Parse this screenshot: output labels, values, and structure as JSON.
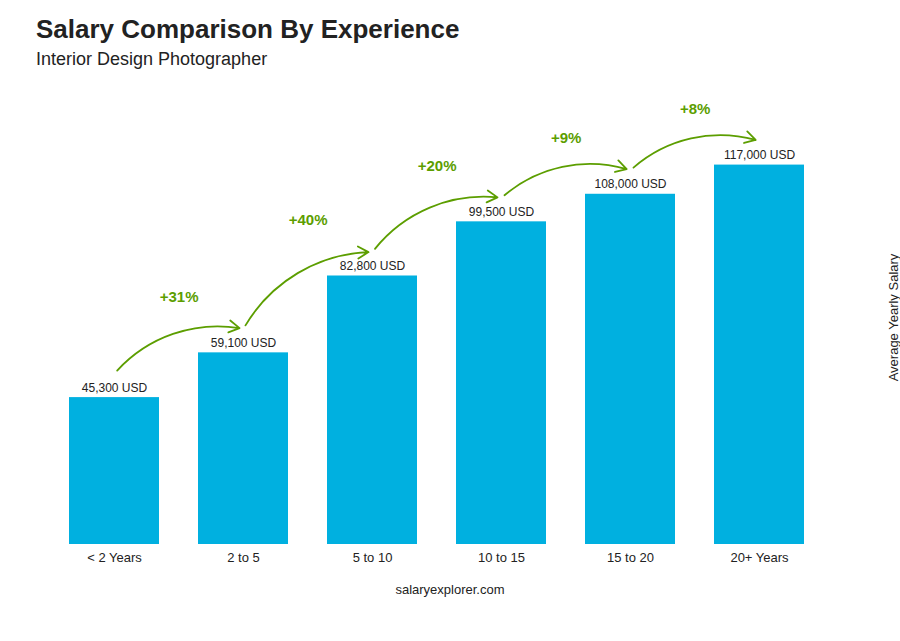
{
  "chart_data": {
    "type": "bar",
    "title": "Salary Comparison By Experience",
    "subtitle": "Interior Design Photographer",
    "categories": [
      "< 2 Years",
      "2 to 5",
      "5 to 10",
      "10 to 15",
      "15 to 20",
      "20+ Years"
    ],
    "values": [
      45300,
      59100,
      82800,
      99500,
      108000,
      117000
    ],
    "value_labels": [
      "45,300 USD",
      "59,100 USD",
      "82,800 USD",
      "99,500 USD",
      "108,000 USD",
      "117,000 USD"
    ],
    "data_labels": true,
    "color": "#00b0e0",
    "ylabel": "Average Yearly Salary",
    "annotations": [
      "+31%",
      "+40%",
      "+20%",
      "+9%",
      "+8%"
    ],
    "caption": "salaryexplorer.com",
    "ylim": [
      0,
      140000
    ],
    "yticks": [],
    "tick_labels": "x",
    "grid": false
  }
}
